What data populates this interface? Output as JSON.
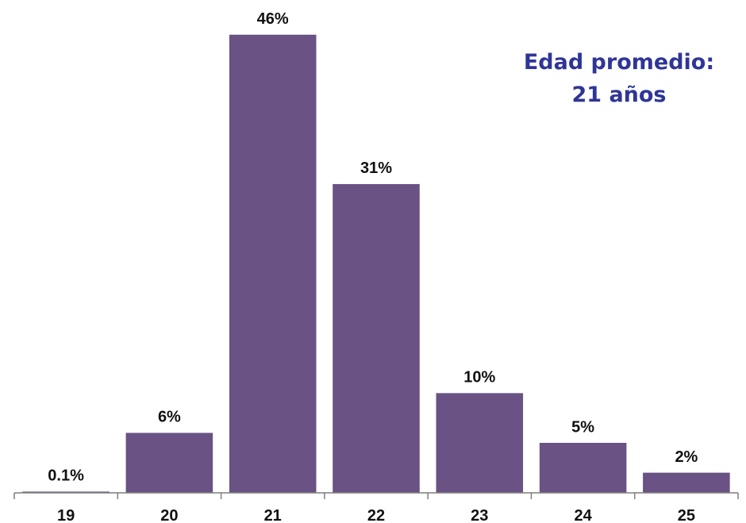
{
  "chart_data": {
    "type": "bar",
    "categories": [
      "19",
      "20",
      "21",
      "22",
      "23",
      "24",
      "25"
    ],
    "values": [
      0.1,
      6,
      46,
      31,
      10,
      5,
      2
    ],
    "value_labels": [
      "0.1%",
      "6%",
      "46%",
      "31%",
      "10%",
      "5%",
      "2%"
    ],
    "title": "",
    "xlabel": "",
    "ylabel": "",
    "ylim": [
      0,
      46
    ],
    "grid": false,
    "legend": "none",
    "bar_color": "#6a5284",
    "annotation": {
      "line1": "Edad promedio:",
      "line2": "21 años",
      "color": "#2f3597"
    }
  }
}
